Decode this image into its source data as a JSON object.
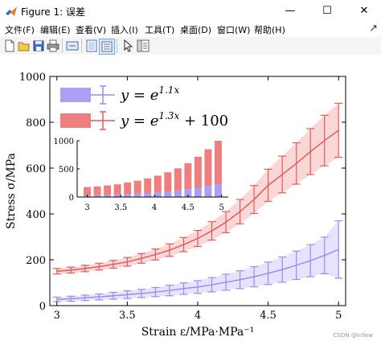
{
  "window": {
    "title": "Figure 1: 误差",
    "minimize": "—",
    "maximize": "☐",
    "close": "✕"
  },
  "menu": {
    "items": [
      "文件(F)",
      "编辑(E)",
      "查看(V)",
      "插入(I)",
      "工具(T)",
      "桌面(D)",
      "窗口(W)",
      "帮助(H)"
    ],
    "close_glyph": "↗"
  },
  "toolbar": {
    "icons": [
      "new-figure-icon",
      "open-file-icon",
      "save-icon",
      "print-icon",
      "link-icon",
      "figure-toolbar-icon",
      "plot-browser-icon",
      "select-arrow-icon",
      "property-inspector-icon"
    ]
  },
  "watermark": "CSDN @Infww",
  "colors": {
    "series1_line": "#9a8cf0",
    "series1_fill": "#e3defc",
    "series2_line": "#e05c5c",
    "series2_fill": "#f8d0d0",
    "legend1_patch": "#a99ff5",
    "legend2_patch": "#ef7f7f"
  },
  "chart_data": [
    {
      "type": "line",
      "xlabel": "Strain  ε/MPa·MPa⁻¹",
      "ylabel": "Stress  σ/MPa",
      "xlim": [
        2.95,
        5.05
      ],
      "ylim": [
        0,
        1000
      ],
      "x_ticks": [
        "3",
        "3.5",
        "4",
        "4.5",
        "5"
      ],
      "y_ticks": [
        "0",
        "200",
        "400",
        "600",
        "800",
        "1000"
      ],
      "grid": false,
      "legend_position": "top-left",
      "x": [
        3.0,
        3.1,
        3.2,
        3.3,
        3.4,
        3.5,
        3.6,
        3.7,
        3.8,
        3.9,
        4.0,
        4.1,
        4.2,
        4.3,
        4.4,
        4.5,
        4.6,
        4.7,
        4.8,
        4.9,
        5.0
      ],
      "series": [
        {
          "name": "y = e^{1.1x}",
          "values": [
            27,
            30,
            34,
            38,
            43,
            48,
            53,
            59,
            66,
            74,
            81,
            91,
            102,
            113,
            126,
            141,
            157,
            176,
            196,
            219,
            245
          ],
          "error": [
            10,
            11,
            12,
            13,
            15,
            17,
            18,
            20,
            23,
            25,
            28,
            31,
            35,
            39,
            44,
            49,
            55,
            62,
            70,
            80,
            125
          ]
        },
        {
          "name": "y = e^{1.3x} + 100",
          "values": [
            150,
            155,
            162,
            170,
            180,
            191,
            206,
            223,
            242,
            266,
            293,
            326,
            364,
            410,
            463,
            525,
            572,
            620,
            672,
            720,
            765
          ],
          "error": [
            12,
            13,
            14,
            15,
            17,
            19,
            21,
            24,
            27,
            31,
            35,
            40,
            46,
            53,
            61,
            70,
            80,
            90,
            100,
            110,
            118
          ]
        }
      ],
      "legend": [
        {
          "label_main": "y = e",
          "label_sup": "1.1x",
          "label_tail": ""
        },
        {
          "label_main": "y = e",
          "label_sup": "1.3x",
          "label_tail": " + 100"
        }
      ]
    },
    {
      "type": "bar",
      "stacked": true,
      "xlim": [
        2.85,
        5.1
      ],
      "ylim": [
        0,
        1000
      ],
      "x_ticks": [
        "3",
        "3.5",
        "4",
        "4.5",
        "5"
      ],
      "y_ticks": [
        "0",
        "500",
        "1000"
      ],
      "x": [
        3.0,
        3.15,
        3.3,
        3.45,
        3.6,
        3.75,
        3.9,
        4.05,
        4.2,
        4.35,
        4.5,
        4.65,
        4.8,
        4.95
      ],
      "series": [
        {
          "name": "y = e^{1.1x}",
          "values": [
            27,
            32,
            38,
            44,
            52,
            60,
            72,
            85,
            100,
            115,
            140,
            165,
            195,
            230
          ]
        },
        {
          "name": "y = e^{1.3x} + 100",
          "values": [
            150,
            157,
            169,
            182,
            206,
            230,
            258,
            295,
            340,
            395,
            460,
            550,
            655,
            770
          ]
        }
      ]
    }
  ]
}
